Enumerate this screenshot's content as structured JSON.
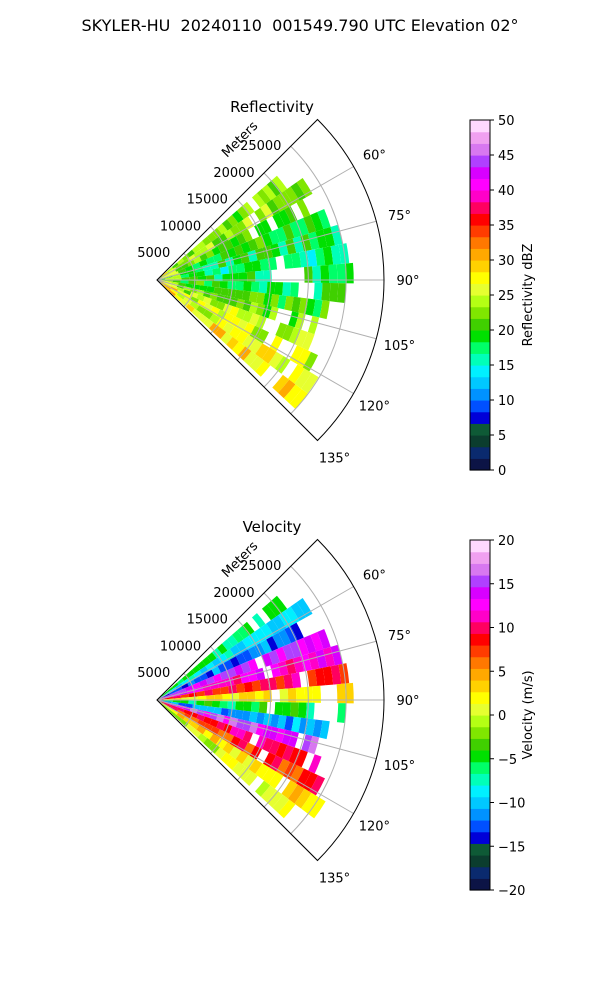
{
  "title": "SKYLER-HU  20240110  001549.790 UTC Elevation 02°",
  "colors": {
    "grid": "#b0b0b0",
    "reflectivity_colormap": [
      "#0c1446",
      "#0a2a6e",
      "#0b3d2e",
      "#0e5a36",
      "#0000d8",
      "#0050ff",
      "#0092ff",
      "#00c8ff",
      "#00f0ff",
      "#00ffb8",
      "#00ff68",
      "#00e000",
      "#40d000",
      "#80e600",
      "#b4ff14",
      "#e6ff30",
      "#ffff00",
      "#ffd200",
      "#ffa800",
      "#ff7800",
      "#ff3c00",
      "#ff0000",
      "#ff0060",
      "#ff00c8",
      "#ff00ff",
      "#d800ff",
      "#b040ff",
      "#d878f0",
      "#f0a0f0",
      "#ffd8ff"
    ],
    "velocity_colormap": [
      "#0c1446",
      "#0a2a6e",
      "#0b3d2e",
      "#0e5a36",
      "#0000d8",
      "#0050ff",
      "#0092ff",
      "#00c8ff",
      "#00f0ff",
      "#00ffb8",
      "#00ff68",
      "#00e000",
      "#40d000",
      "#80e600",
      "#b4ff14",
      "#e6ff30",
      "#ffff00",
      "#ffd200",
      "#ffa800",
      "#ff7800",
      "#ff3c00",
      "#ff0000",
      "#ff0060",
      "#ff00c8",
      "#ff00ff",
      "#d800ff",
      "#b040ff",
      "#d878f0",
      "#f0a0f0",
      "#ffd8ff"
    ]
  },
  "chart_data": [
    {
      "type": "heatmap",
      "projection": "polar-sector",
      "title": "Reflectivity",
      "radial_label": "Meters",
      "radial_ticks": [
        "5000",
        "10000",
        "15000",
        "20000",
        "25000"
      ],
      "radial_ticks_values": [
        5000,
        10000,
        15000,
        20000,
        25000
      ],
      "rlim": [
        0,
        30000
      ],
      "azimuth_ticks": [
        "60°",
        "75°",
        "90°",
        "105°",
        "120°",
        "135°"
      ],
      "azimuth_ticks_values": [
        60,
        75,
        90,
        105,
        120,
        135
      ],
      "azimuth_range": [
        45,
        135
      ],
      "grid": true,
      "colorbar": {
        "label": "Reflectivity dBZ",
        "ticks": [
          "0",
          "5",
          "10",
          "15",
          "20",
          "25",
          "30",
          "35",
          "40",
          "45",
          "50"
        ],
        "range": [
          0,
          50
        ]
      },
      "beams": [
        {
          "az": 52,
          "range_end": 21000,
          "value": 22
        },
        {
          "az": 58,
          "range_end": 23500,
          "value": 23
        },
        {
          "az": 64,
          "range_end": 22000,
          "value": 21
        },
        {
          "az": 70,
          "range_end": 24000,
          "value": 20
        },
        {
          "az": 76,
          "range_end": 25000,
          "value": 18
        },
        {
          "az": 82,
          "range_end": 25500,
          "value": 17
        },
        {
          "az": 88,
          "range_end": 26000,
          "value": 18
        },
        {
          "az": 94,
          "range_end": 25000,
          "value": 19
        },
        {
          "az": 100,
          "range_end": 23000,
          "value": 20
        },
        {
          "az": 106,
          "range_end": 22000,
          "value": 22
        },
        {
          "az": 112,
          "range_end": 23000,
          "value": 24
        },
        {
          "az": 118,
          "range_end": 24500,
          "value": 25
        },
        {
          "az": 124,
          "range_end": 26000,
          "value": 26
        },
        {
          "az": 130,
          "range_end": 25000,
          "value": 28
        }
      ]
    },
    {
      "type": "heatmap",
      "projection": "polar-sector",
      "title": "Velocity",
      "radial_label": "Meters",
      "radial_ticks": [
        "5000",
        "10000",
        "15000",
        "20000",
        "25000"
      ],
      "radial_ticks_values": [
        5000,
        10000,
        15000,
        20000,
        25000
      ],
      "rlim": [
        0,
        30000
      ],
      "azimuth_ticks": [
        "60°",
        "75°",
        "90°",
        "105°",
        "120°",
        "135°"
      ],
      "azimuth_ticks_values": [
        60,
        75,
        90,
        105,
        120,
        135
      ],
      "azimuth_range": [
        45,
        135
      ],
      "grid": true,
      "colorbar": {
        "label": "Velocity (m/s)",
        "ticks": [
          "20",
          "15",
          "10",
          "5",
          "0",
          "−5",
          "−10",
          "−15",
          "−20"
        ],
        "ticks_values": [
          20,
          15,
          10,
          5,
          0,
          -5,
          -10,
          -15,
          -20
        ],
        "range": [
          -20,
          20
        ]
      },
      "beams": [
        {
          "az": 52,
          "range_end": 21000,
          "value": -6
        },
        {
          "az": 58,
          "range_end": 23500,
          "value": -9
        },
        {
          "az": 64,
          "range_end": 22000,
          "value": -12
        },
        {
          "az": 70,
          "range_end": 24000,
          "value": 14
        },
        {
          "az": 76,
          "range_end": 25000,
          "value": 12
        },
        {
          "az": 82,
          "range_end": 25500,
          "value": 9
        },
        {
          "az": 88,
          "range_end": 26000,
          "value": 2
        },
        {
          "az": 94,
          "range_end": 25000,
          "value": -5
        },
        {
          "az": 100,
          "range_end": 23000,
          "value": -11
        },
        {
          "az": 106,
          "range_end": 22000,
          "value": 15
        },
        {
          "az": 112,
          "range_end": 23000,
          "value": 10
        },
        {
          "az": 118,
          "range_end": 24500,
          "value": 8
        },
        {
          "az": 124,
          "range_end": 26000,
          "value": 3
        },
        {
          "az": 130,
          "range_end": 25000,
          "value": 0
        }
      ]
    }
  ]
}
